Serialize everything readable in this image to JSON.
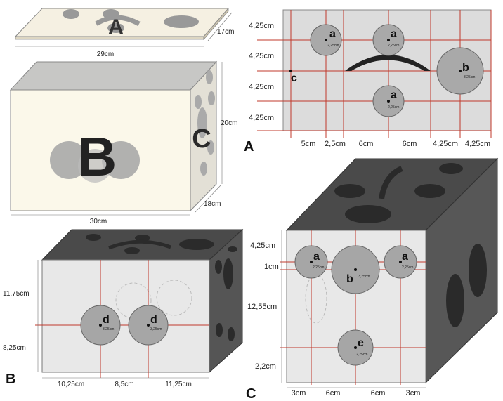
{
  "top_views": {
    "lid": {
      "letter": "A",
      "width": "29cm",
      "depth": "17cm"
    },
    "box_b": {
      "letter": "B",
      "side_letter": "C",
      "width": "30cm",
      "height": "20cm",
      "depth": "18cm"
    }
  },
  "panel_a": {
    "letter": "A",
    "row_dims": [
      "4,25cm",
      "4,25cm",
      "4,25cm",
      "4,25cm"
    ],
    "col_dims": [
      "5cm",
      "2,5cm",
      "6cm",
      "6cm",
      "4,25cm",
      "4,25cm"
    ],
    "holes": [
      {
        "label": "a",
        "size": "2,25cm"
      },
      {
        "label": "a",
        "size": "2,25cm"
      },
      {
        "label": "b",
        "size": "3,25cm"
      },
      {
        "label": "a",
        "size": "2,25cm"
      }
    ],
    "point_label": "c"
  },
  "panel_b": {
    "letter": "B",
    "row_dims": [
      "11,75cm",
      "8,25cm"
    ],
    "col_dims": [
      "10,25cm",
      "8,5cm",
      "11,25cm"
    ],
    "holes": [
      {
        "label": "d",
        "size": "3,25cm"
      },
      {
        "label": "d",
        "size": "3,25cm"
      }
    ]
  },
  "panel_c": {
    "letter": "C",
    "row_dims": [
      "4,25cm",
      "1cm",
      "12,55cm",
      "2,2cm"
    ],
    "col_dims": [
      "3cm",
      "6cm",
      "6cm",
      "3cm"
    ],
    "holes": [
      {
        "label": "a",
        "size": "2,25cm"
      },
      {
        "label": "b",
        "size": "3,25cm"
      },
      {
        "label": "a",
        "size": "2,25cm"
      },
      {
        "label": "e",
        "size": "2,25cm"
      }
    ]
  }
}
